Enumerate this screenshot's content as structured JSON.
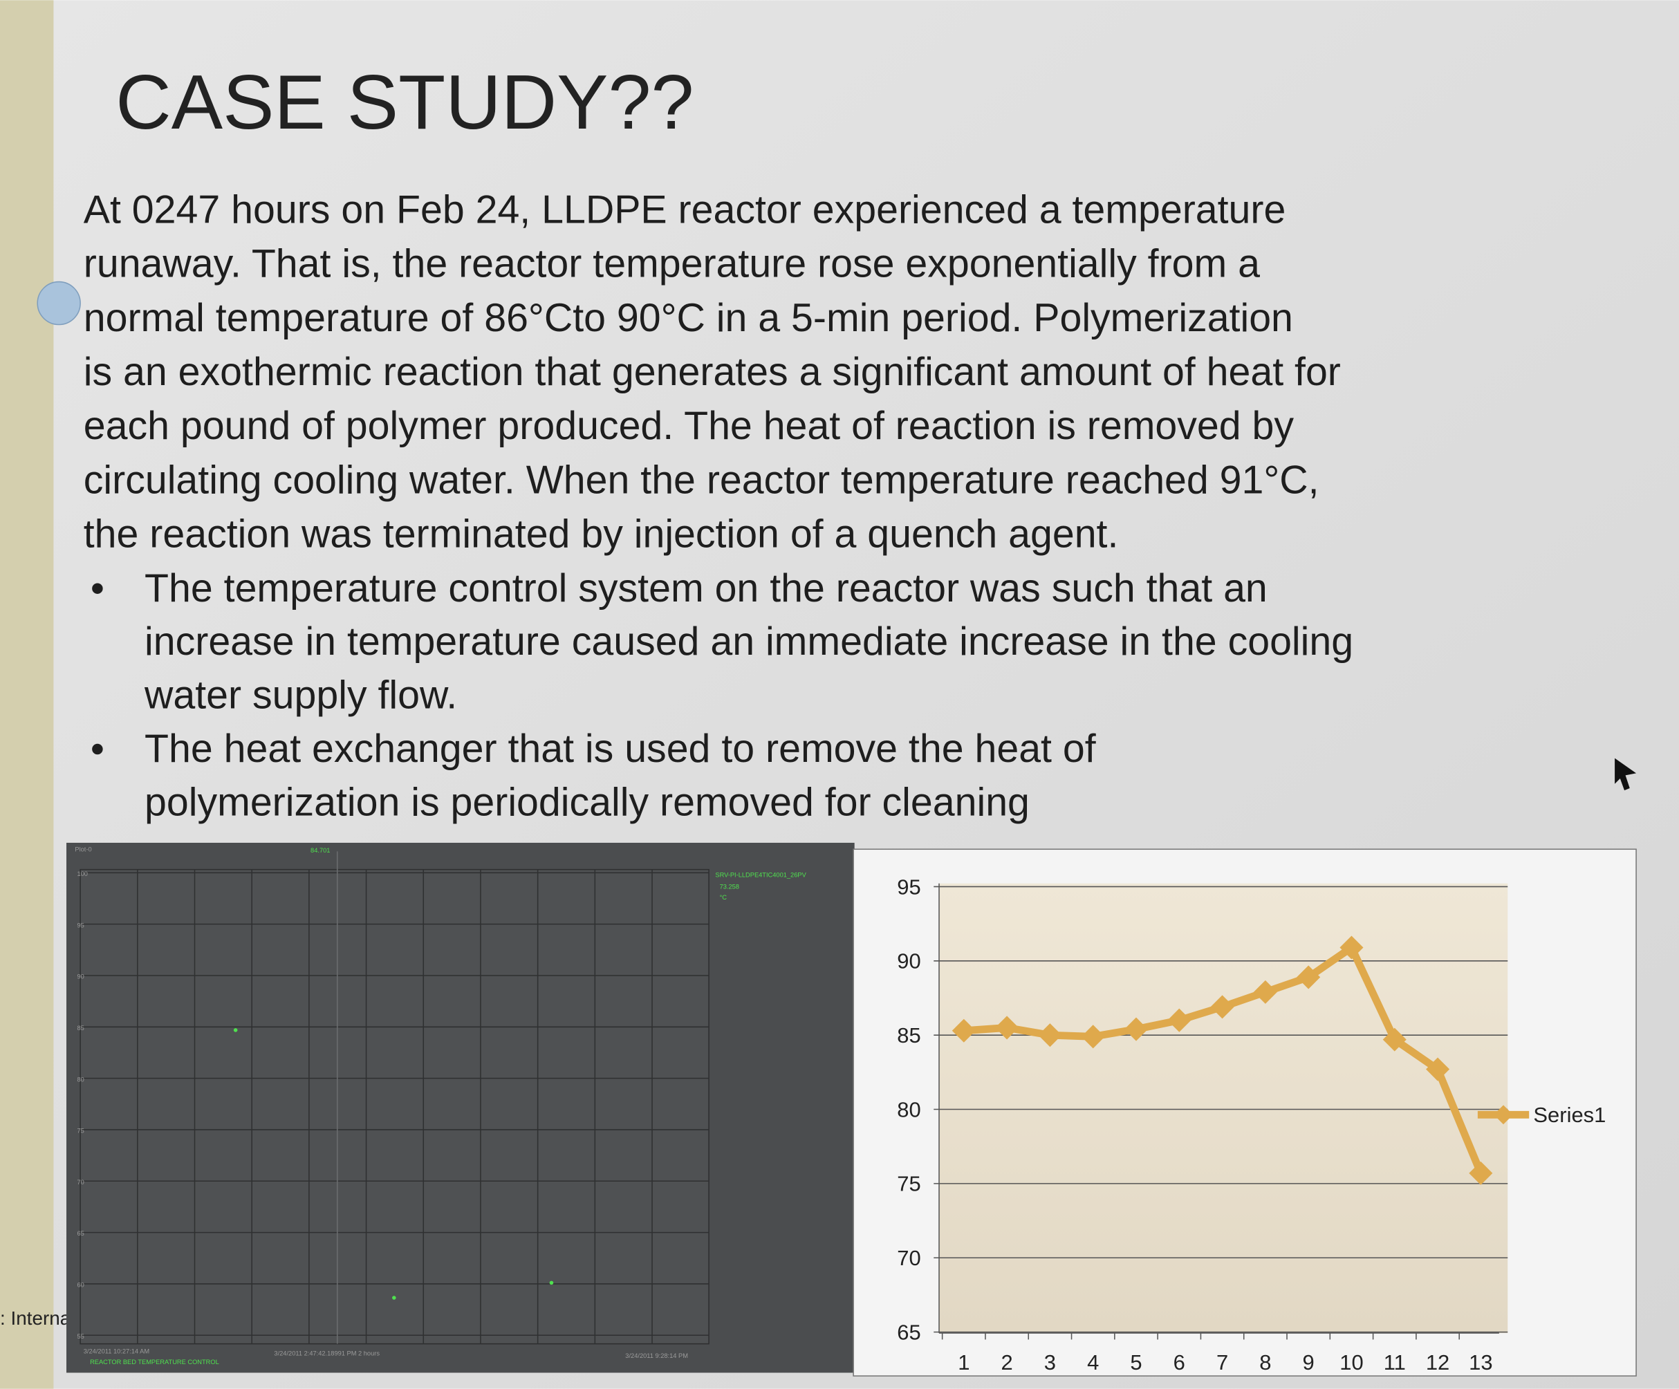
{
  "slide": {
    "title": "CASE STUDY??",
    "paragraph": [
      "At 0247 hours on Feb  24, LLDPE reactor  experienced a temperature",
      "runaway. That is, the reactor temperature rose exponentially from a",
      "normal temperature of 86°Cto 90°C in a 5-min period. Polymerization",
      "is an exothermic reaction that generates a significant amount of heat for",
      "each pound of polymer produced. The heat of reaction is removed by",
      "circulating cooling water. When the reactor temperature reached 91°C,",
      "the reaction was terminated by injection of a quench agent."
    ],
    "bullets": [
      [
        "The temperature control system on the reactor was such that an",
        "increase in temperature caused an immediate increase in the cooling",
        "water supply flow."
      ],
      [
        "The heat exchanger that is used to remove the heat of",
        "polymerization is periodically removed for cleaning"
      ]
    ],
    "side_label": ": Interna"
  },
  "trend": {
    "plot_name": "Plot-0",
    "cursor_value": "84.701",
    "yticks": [
      "100",
      "95",
      "90",
      "85",
      "80",
      "75",
      "70",
      "65",
      "60",
      "55"
    ],
    "tag": "SRV-PI-LLDPE4TIC4001_26PV",
    "tag_value": "73.258",
    "tag_unit": "°C",
    "start_time": "3/24/2011 10:27:14 AM",
    "trace_name": "REACTOR BED TEMPERATURE CONTROL",
    "cursor_time": "3/24/2011 2:47:42.18991 PM 2 hours",
    "end_time": "3/24/2011 9:28:14 PM"
  },
  "chart_data": {
    "type": "line",
    "categories": [
      "1",
      "2",
      "3",
      "4",
      "5",
      "6",
      "7",
      "8",
      "9",
      "10",
      "11",
      "12",
      "13"
    ],
    "series": [
      {
        "name": "Series1",
        "color": "#dfa94c",
        "values": [
          85.3,
          85.5,
          85,
          84.9,
          85.4,
          86,
          86.9,
          87.9,
          88.9,
          90.9,
          84.7,
          82.7,
          75.7
        ]
      }
    ],
    "ylim": [
      65,
      95
    ],
    "yticks": [
      65,
      70,
      75,
      80,
      85,
      90,
      95
    ],
    "grid": true,
    "legend": "right"
  }
}
